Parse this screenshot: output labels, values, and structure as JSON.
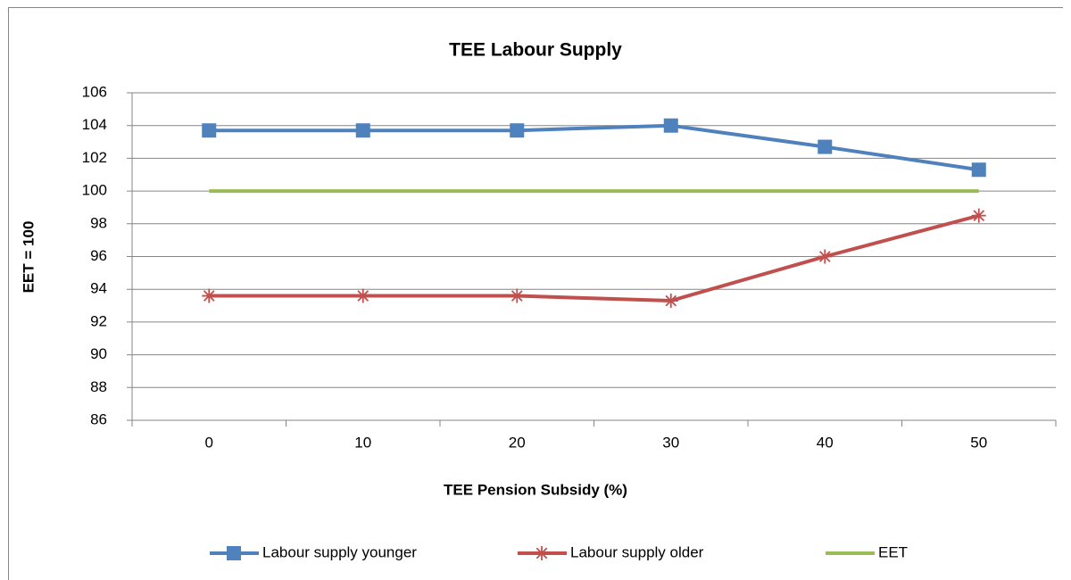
{
  "chart_data": {
    "type": "line",
    "title": "TEE Labour Supply",
    "x_label": "TEE Pension Subsidy (%)",
    "y_label": "EET = 100",
    "categories": [
      "0",
      "10",
      "20",
      "30",
      "40",
      "50"
    ],
    "series": [
      {
        "name": "Labour supply younger",
        "color": "#4f81bd",
        "marker": "square",
        "values": [
          103.7,
          103.7,
          103.7,
          104.0,
          102.7,
          101.3
        ]
      },
      {
        "name": "Labour supply older",
        "color": "#c0504d",
        "marker": "asterisk",
        "values": [
          93.6,
          93.6,
          93.6,
          93.3,
          96.0,
          98.5
        ]
      },
      {
        "name": "EET",
        "color": "#9bbb59",
        "marker": "none",
        "values": [
          100,
          100,
          100,
          100,
          100,
          100
        ]
      }
    ],
    "ylim": [
      86,
      106
    ],
    "yticks": [
      86,
      88,
      90,
      92,
      94,
      96,
      98,
      100,
      102,
      104,
      106
    ],
    "grid": true,
    "legend": "bottom"
  }
}
